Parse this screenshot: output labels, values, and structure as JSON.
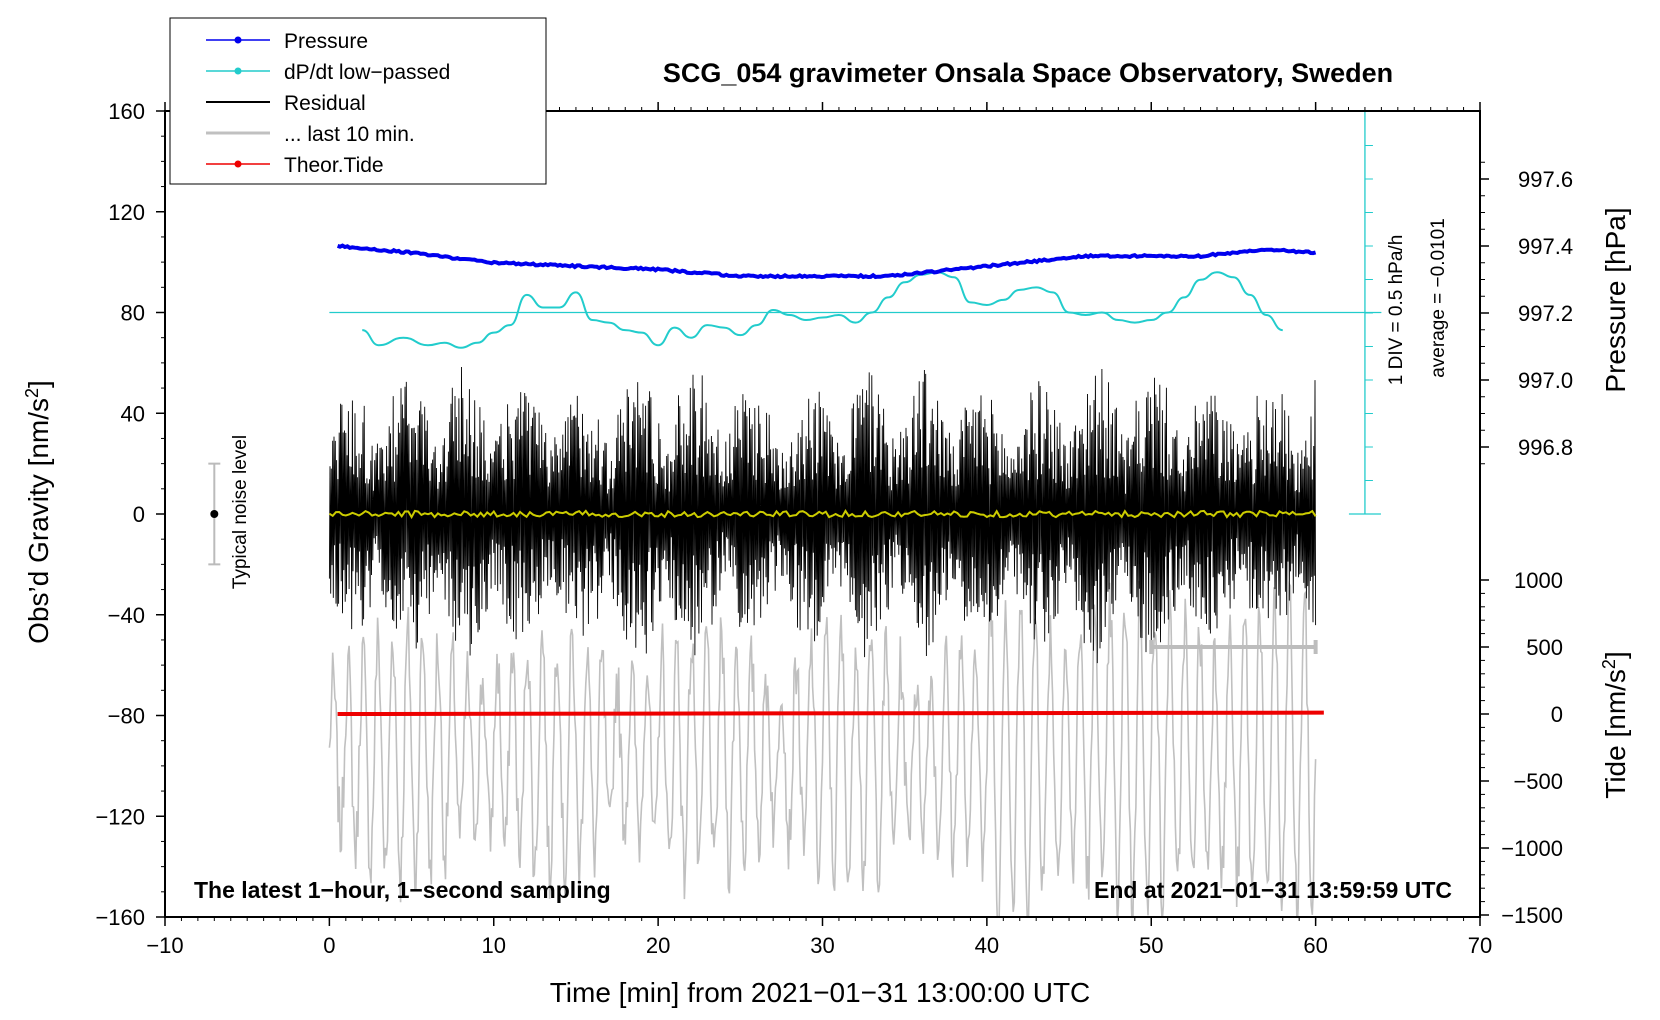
{
  "chart_data": {
    "type": "line",
    "title": "SCG_054 gravimeter Onsala Space Observatory, Sweden",
    "xlabel": "Time [min] from 2021−01−31 13:00:00 UTC",
    "ylabel_left": "Obs’d Gravity [nm/s²]",
    "ylabel_left_base": "Obs’d Gravity [nm/s",
    "ylabel_pressure": "Pressure [hPa]",
    "ylabel_tide_base": "Tide [nm/s",
    "sup2": "2",
    "xlim": [
      -10,
      70
    ],
    "ylim": [
      -160,
      160
    ],
    "x_ticks": [
      "−10",
      "0",
      "10",
      "20",
      "30",
      "40",
      "50",
      "60",
      "70"
    ],
    "y_ticks": [
      "160",
      "120",
      "80",
      "40",
      "0",
      "−40",
      "−80",
      "−120",
      "−160"
    ],
    "pressure_ticks": [
      "997.6",
      "997.4",
      "997.2",
      "997.0",
      "996.8"
    ],
    "tide_ticks": [
      "1000",
      "500",
      "0",
      "−500",
      "−1000",
      "−1500"
    ],
    "legend": [
      "Pressure",
      "dP/dt low−passed",
      "Residual",
      "... last 10 min.",
      "Theor.Tide"
    ],
    "noise_label": "Typical noise level",
    "div_label": "1 DIV = 0.5 hPa/h",
    "average_label": "average = −0.0101",
    "footer_left": "The latest 1−hour, 1−second sampling",
    "footer_right": "End at 2021−01−31 13:59:59 UTC",
    "series": [
      {
        "name": "Pressure",
        "color": "#0000ee",
        "unit": "hPa",
        "x": [
          0.5,
          5,
          10,
          15,
          20,
          25,
          30,
          34,
          38,
          42,
          46,
          50,
          53,
          57,
          60
        ],
        "values": [
          997.4,
          997.38,
          997.35,
          997.34,
          997.33,
          997.31,
          997.31,
          997.31,
          997.33,
          997.35,
          997.37,
          997.37,
          997.37,
          997.39,
          997.38
        ]
      },
      {
        "name": "dP/dt low−passed",
        "color": "#22cccc",
        "unit": "nm/s² axis",
        "x": [
          2,
          3,
          4.5,
          6,
          7,
          8,
          9,
          10,
          11,
          12,
          13,
          14,
          15,
          16,
          17,
          18,
          19,
          20,
          21,
          22,
          23,
          24,
          25,
          26,
          27,
          28,
          29,
          30,
          31,
          32,
          33,
          34,
          35,
          36,
          37,
          38,
          39,
          40,
          41,
          42,
          43,
          44,
          45,
          46,
          47,
          48,
          49,
          50,
          51,
          52,
          53,
          54,
          55,
          56,
          57,
          58
        ],
        "values": [
          73,
          67,
          70,
          67,
          68,
          66,
          68,
          72,
          75,
          87,
          82,
          82,
          88,
          77,
          76,
          73,
          72,
          67,
          74,
          70,
          75,
          74,
          71,
          75,
          81,
          79,
          77,
          78,
          79,
          76,
          80,
          86,
          92,
          95,
          96,
          94,
          84,
          83,
          85,
          89,
          90,
          88,
          80,
          79,
          80,
          77,
          76,
          77,
          80,
          86,
          93,
          96,
          94,
          87,
          79,
          73
        ]
      },
      {
        "name": "Residual",
        "color": "#000000",
        "amplitude_nm_s2": 60
      },
      {
        "name": "Residual mean",
        "color": "#cccc00",
        "values_nm_s2": [
          0,
          0
        ]
      },
      {
        "name": "... last 10 min.",
        "color": "#c0c0c0",
        "unit": "nm/s² x10",
        "x_span": [
          0,
          60
        ]
      },
      {
        "name": "Theor.Tide",
        "color": "#ee0000",
        "unit": "nm/s²",
        "x": [
          0.5,
          60.5
        ],
        "values": [
          0,
          10
        ]
      }
    ],
    "noise_bar": {
      "x": -7,
      "center": 0,
      "half": 20
    },
    "last10_bar": {
      "x": [
        50,
        60
      ],
      "tide_value": 500
    },
    "cyan_reference": {
      "value": 80,
      "scale_x": 63,
      "scale_range": [
        0,
        160
      ]
    }
  }
}
